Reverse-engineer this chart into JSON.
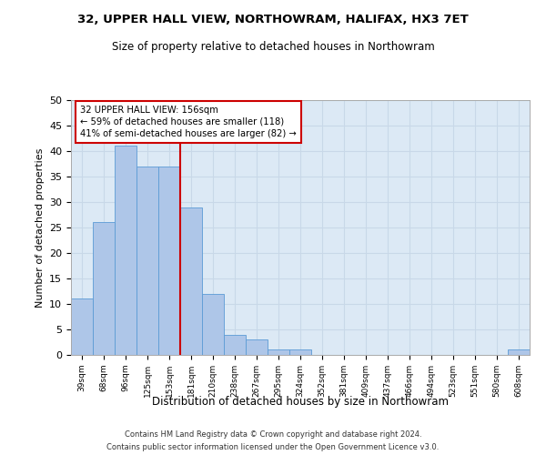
{
  "title": "32, UPPER HALL VIEW, NORTHOWRAM, HALIFAX, HX3 7ET",
  "subtitle": "Size of property relative to detached houses in Northowram",
  "xlabel": "Distribution of detached houses by size in Northowram",
  "ylabel": "Number of detached properties",
  "bar_labels": [
    "39sqm",
    "68sqm",
    "96sqm",
    "125sqm",
    "153sqm",
    "181sqm",
    "210sqm",
    "238sqm",
    "267sqm",
    "295sqm",
    "324sqm",
    "352sqm",
    "381sqm",
    "409sqm",
    "437sqm",
    "466sqm",
    "494sqm",
    "523sqm",
    "551sqm",
    "580sqm",
    "608sqm"
  ],
  "bar_values": [
    11,
    26,
    41,
    37,
    37,
    29,
    12,
    4,
    3,
    1,
    1,
    0,
    0,
    0,
    0,
    0,
    0,
    0,
    0,
    0,
    1
  ],
  "bar_color": "#aec6e8",
  "bar_edge_color": "#5b9bd5",
  "property_label": "32 UPPER HALL VIEW: 156sqm",
  "annotation_line1": "← 59% of detached houses are smaller (118)",
  "annotation_line2": "41% of semi-detached houses are larger (82) →",
  "vline_color": "#cc0000",
  "annotation_box_color": "#ffffff",
  "annotation_box_edge": "#cc0000",
  "grid_color": "#c8d8e8",
  "background_color": "#dce9f5",
  "ylim": [
    0,
    50
  ],
  "yticks": [
    0,
    5,
    10,
    15,
    20,
    25,
    30,
    35,
    40,
    45,
    50
  ],
  "footnote1": "Contains HM Land Registry data © Crown copyright and database right 2024.",
  "footnote2": "Contains public sector information licensed under the Open Government Licence v3.0."
}
